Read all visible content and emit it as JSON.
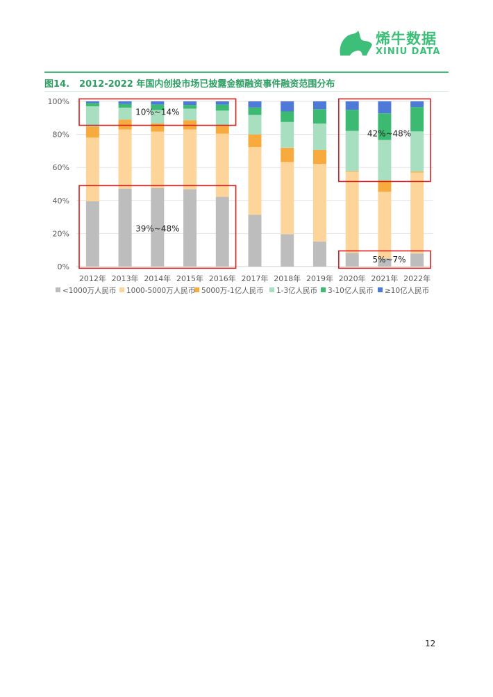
{
  "header": {
    "logo_cn": "烯牛数据",
    "logo_en": "XINIU DATA",
    "brand_color": "#3dbf7a"
  },
  "figure": {
    "number": "图14.",
    "title": "2012-2022 年国内创投市场已披露金额融资事件融资范围分布"
  },
  "chart_data": {
    "type": "bar",
    "stacked": true,
    "categories": [
      "2012年",
      "2013年",
      "2014年",
      "2015年",
      "2016年",
      "2017年",
      "2018年",
      "2019年",
      "2020年",
      "2021年",
      "2022年"
    ],
    "ylim": [
      0,
      100
    ],
    "yticks": [
      "0%",
      "20%",
      "40%",
      "60%",
      "80%",
      "100%"
    ],
    "grid": true,
    "legend_position": "bottom",
    "series": [
      {
        "name": "<1000万人民币",
        "color": "#bdbdbd",
        "values": [
          39.5,
          47.2,
          47.6,
          46.8,
          42.2,
          31.3,
          19.6,
          15.2,
          8.2,
          5.0,
          7.9
        ]
      },
      {
        "name": "1000-5000万人民币",
        "color": "#fdd49a",
        "values": [
          38.6,
          35.8,
          34.1,
          36.2,
          38.2,
          41.0,
          43.7,
          46.9,
          49.1,
          40.3,
          49.0
        ]
      },
      {
        "name": "5000万-1亿人民币",
        "color": "#f7ab3f",
        "values": [
          6.6,
          6.0,
          5.0,
          5.6,
          4.8,
          7.7,
          8.6,
          8.5,
          0.4,
          6.9,
          0.6
        ]
      },
      {
        "name": "1-3亿人民币",
        "color": "#a8dfc0",
        "values": [
          12.3,
          7.2,
          8.0,
          7.0,
          9.2,
          11.8,
          15.6,
          16.0,
          24.4,
          24.4,
          24.3
        ]
      },
      {
        "name": "3-10亿人民币",
        "color": "#3dba72",
        "values": [
          2.0,
          2.2,
          3.3,
          2.2,
          3.6,
          4.5,
          6.4,
          8.7,
          12.8,
          16.2,
          14.8
        ]
      },
      {
        "name": "≥10亿人民币",
        "color": "#4e79d6",
        "values": [
          1.0,
          1.6,
          2.0,
          2.2,
          2.0,
          3.7,
          6.1,
          4.7,
          5.1,
          7.2,
          3.4
        ]
      }
    ],
    "annotations": [
      {
        "text": "10%~14%",
        "color": "#d92020"
      },
      {
        "text": "39%~48%",
        "color": "#d92020"
      },
      {
        "text": "42%~48%",
        "color": "#d92020"
      },
      {
        "text": "5%~7%",
        "color": "#d92020"
      }
    ]
  },
  "page": {
    "number": "12"
  }
}
